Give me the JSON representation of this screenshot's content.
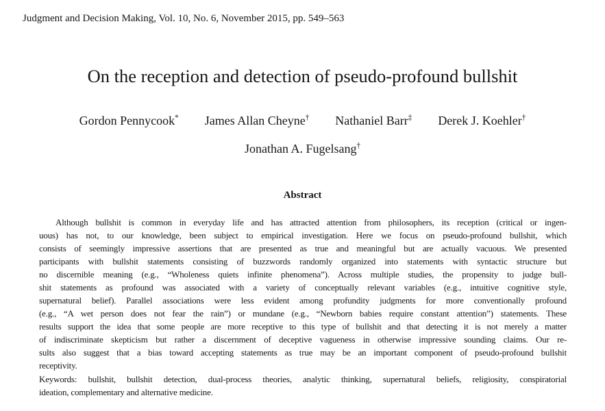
{
  "colors": {
    "background": "#ffffff",
    "text": "#151515"
  },
  "journal_header": "Judgment and Decision Making, Vol. 10, No. 6, November 2015, pp. 549–563",
  "title": "On the reception and detection of pseudo-profound bullshit",
  "authors_row1": [
    {
      "name": "Gordon Pennycook",
      "mark": "*"
    },
    {
      "name": "James Allan Cheyne",
      "mark": "†"
    },
    {
      "name": "Nathaniel Barr",
      "mark": "‡"
    },
    {
      "name": "Derek J. Koehler",
      "mark": "†"
    }
  ],
  "authors_row2": [
    {
      "name": "Jonathan A. Fugelsang",
      "mark": "†"
    }
  ],
  "abstract_heading": "Abstract",
  "abstract_lines": [
    "Although bullshit is common in everyday life and has attracted attention from philosophers, its reception (critical or ingen-",
    "uous) has not, to our knowledge, been subject to empirical investigation. Here we focus on pseudo-profound bullshit, which",
    "consists of seemingly impressive assertions that are presented as true and meaningful but are actually vacuous. We presented",
    "participants with bullshit statements consisting of buzzwords randomly organized into statements with syntactic structure but",
    "no discernible meaning (e.g., “Wholeness quiets infinite phenomena”). Across multiple studies, the propensity to judge bull-",
    "shit statements as profound was associated with a variety of conceptually relevant variables (e.g., intuitive cognitive style,",
    "supernatural belief). Parallel associations were less evident among profundity judgments for more conventionally profound",
    "(e.g., “A wet person does not fear the rain”) or mundane (e.g., “Newborn babies require constant attention”) statements. These",
    "results support the idea that some people are more receptive to this type of bullshit and that detecting it is not merely a matter",
    "of indiscriminate skepticism but rather a discernment of deceptive vagueness in otherwise impressive sounding claims. Our re-",
    "sults also suggest that a bias toward accepting statements as true may be an important component of pseudo-profound bullshit",
    "receptivity."
  ],
  "keywords_lines": [
    "Keywords: bullshit, bullshit detection, dual-process theories, analytic thinking, supernatural beliefs, religiosity, conspiratorial",
    "ideation, complementary and alternative medicine."
  ]
}
